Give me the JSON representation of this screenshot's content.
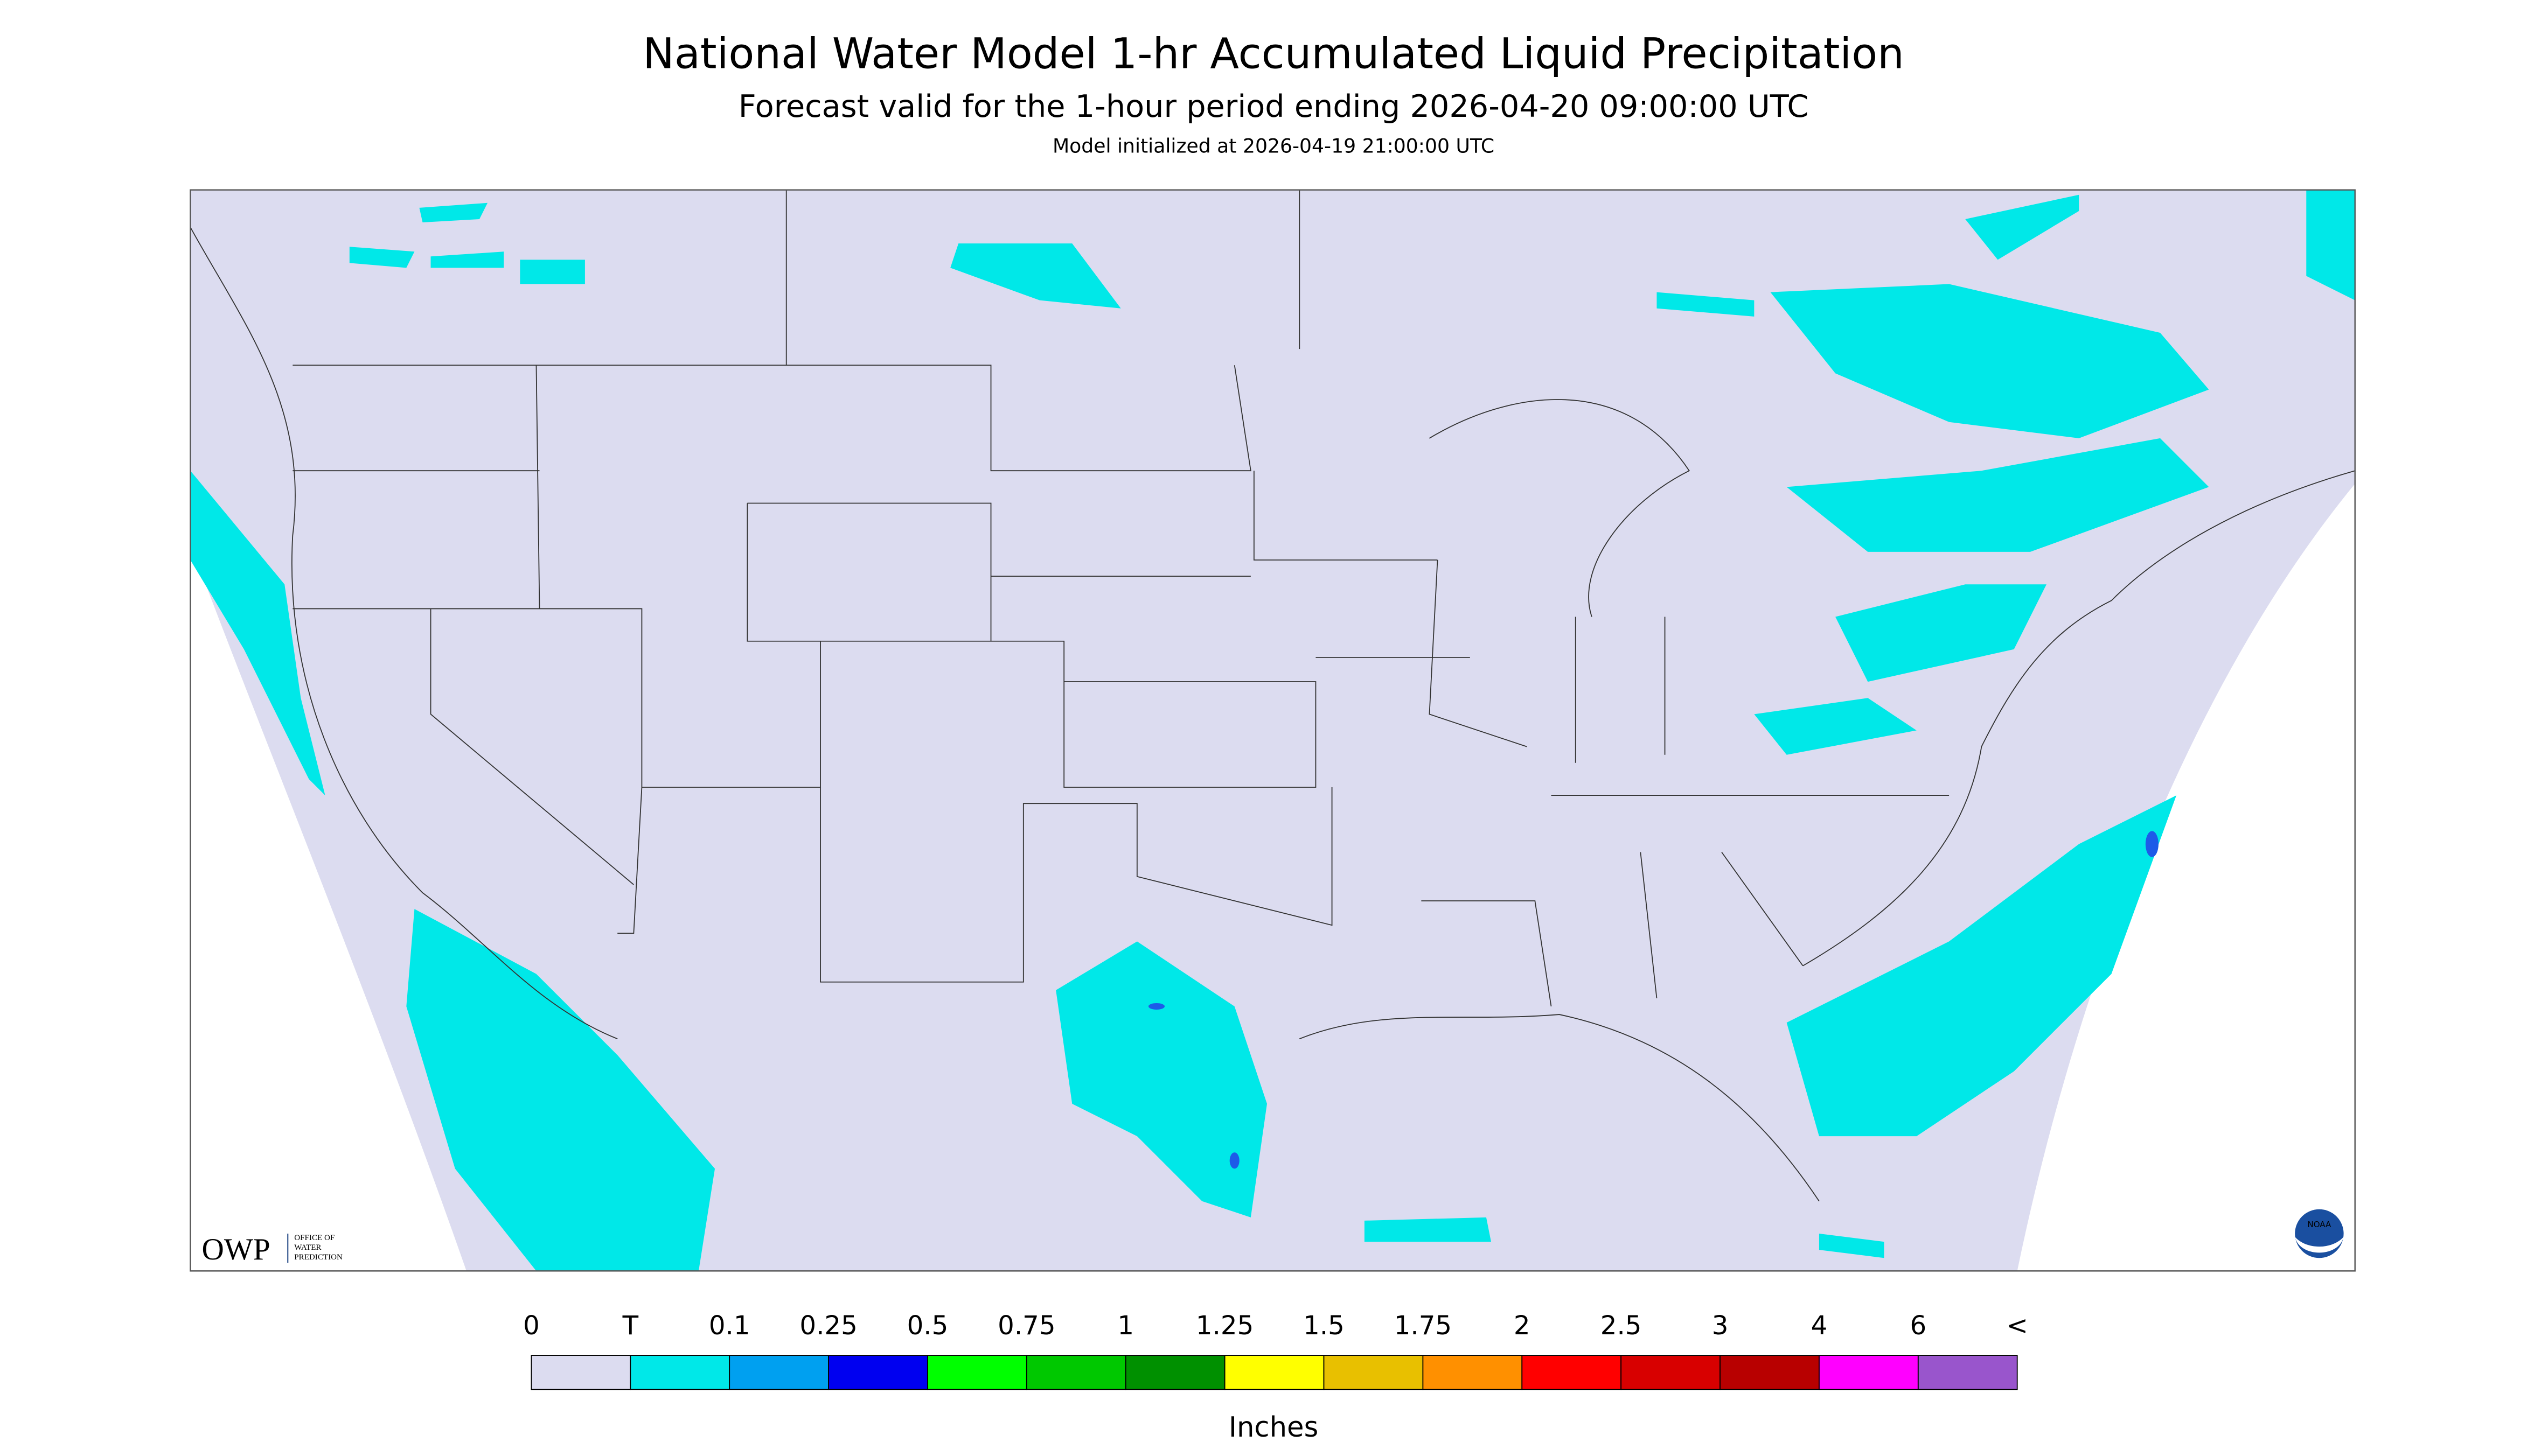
{
  "header": {
    "title": "National Water Model 1-hr Accumulated Liquid Precipitation",
    "subtitle": "Forecast valid for the 1-hour period ending 2026-04-20 09:00:00 UTC",
    "note": "Model initialized at 2026-04-19 21:00:00 UTC"
  },
  "legend": {
    "labels": [
      "0",
      "T",
      "0.1",
      "0.25",
      "0.5",
      "0.75",
      "1",
      "1.25",
      "1.5",
      "1.75",
      "2",
      "2.5",
      "3",
      "4",
      "6",
      "<"
    ],
    "colors": [
      "#dcdcf0",
      "#00e8e8",
      "#00a0f0",
      "#0000f0",
      "#00ff00",
      "#00c800",
      "#009000",
      "#ffff00",
      "#e8c000",
      "#ff9000",
      "#ff0000",
      "#d80000",
      "#b80000",
      "#ff00ff",
      "#9955cc"
    ],
    "units": "Inches"
  },
  "logos": {
    "owp": "OWP",
    "owp_line1": "OFFICE OF",
    "owp_line2": "WATER",
    "owp_line3": "PREDICTION",
    "noaa": "NOAA"
  }
}
